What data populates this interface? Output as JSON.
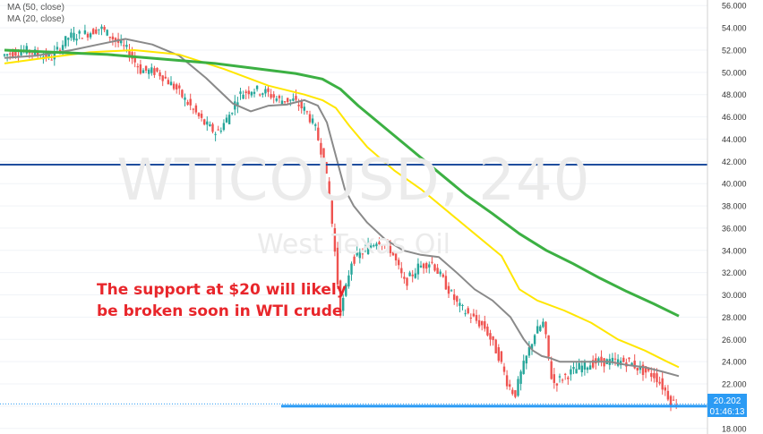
{
  "legend": {
    "ma50": "MA (50, close)",
    "ma20": "MA (20, close)"
  },
  "watermark": {
    "symbol": "WTICOUSD, 240",
    "name": "West Texas Oil"
  },
  "annotation": {
    "line1": "The support at $20 will likely",
    "line2": "be broken soon in WTI crude"
  },
  "last_price": {
    "value": "20.202",
    "countdown": "01:46:13"
  },
  "colors": {
    "up": "#26a69a",
    "down": "#ef5350",
    "ma20": "#8a8a8a",
    "ma50": "#ffe600",
    "ma_long": "#3cb043",
    "resistance": "#1f4e9e",
    "support": "#2b9bf4",
    "annotation": "#e8262b"
  },
  "chart_data": {
    "type": "line",
    "title": "WTICOUSD, 240",
    "ylim": [
      17.5,
      56.5
    ],
    "yticks": [
      18,
      20,
      22,
      24,
      26,
      28,
      30,
      32,
      34,
      36,
      38,
      40,
      42,
      44,
      46,
      48,
      50,
      52,
      54,
      56
    ],
    "ytick_labels": [
      "18.000",
      "20.000",
      "22.000",
      "24.000",
      "26.000",
      "28.000",
      "30.000",
      "32.000",
      "34.000",
      "36.000",
      "38.000",
      "40.000",
      "42.000",
      "44.000",
      "46.000",
      "48.000",
      "50.000",
      "52.000",
      "54.000",
      "56.000"
    ],
    "xlim": [
      0,
      790
    ],
    "price": {
      "x": [
        5,
        30,
        60,
        80,
        100,
        115,
        130,
        145,
        160,
        180,
        200,
        215,
        230,
        245,
        258,
        270,
        285,
        300,
        315,
        330,
        345,
        355,
        365,
        372,
        378,
        383,
        388,
        395,
        410,
        425,
        440,
        455,
        470,
        485,
        500,
        515,
        530,
        545,
        560,
        570,
        578,
        585,
        600,
        610,
        620,
        630,
        650,
        670,
        690,
        705,
        720,
        735,
        745,
        752,
        758
      ],
      "y": [
        51.5,
        52,
        51.3,
        53.2,
        53.5,
        54,
        53,
        52,
        50.2,
        50,
        48.5,
        47,
        45.5,
        44.5,
        46,
        48,
        48.5,
        48.2,
        47.5,
        47.5,
        46.5,
        45,
        42,
        38,
        33,
        28.5,
        30,
        33,
        34,
        35,
        34,
        31,
        32.5,
        33,
        31,
        29,
        28,
        27,
        24.5,
        22,
        21,
        23,
        26.5,
        27.5,
        22,
        22.5,
        23.5,
        24,
        24,
        24,
        23.2,
        22.7,
        21.5,
        20.5,
        20.2
      ]
    },
    "series": [
      {
        "name": "MA (20, close)",
        "x": [
          5,
          40,
          80,
          110,
          140,
          170,
          200,
          230,
          260,
          280,
          300,
          320,
          340,
          355,
          365,
          375,
          385,
          395,
          410,
          430,
          450,
          470,
          490,
          510,
          530,
          550,
          570,
          585,
          595,
          605,
          615,
          625,
          640,
          660,
          680,
          700,
          720,
          740,
          758
        ],
        "y": [
          51.3,
          51.5,
          52,
          52.5,
          53,
          52.5,
          51.5,
          49.5,
          47.2,
          46.5,
          47,
          47.1,
          47.5,
          47,
          45.5,
          42.5,
          39.5,
          38,
          36.5,
          35,
          34,
          33.6,
          33.4,
          32,
          30.5,
          29.5,
          28,
          26,
          25,
          24.5,
          24.3,
          24,
          24,
          24,
          24,
          23.7,
          23.5,
          23.1,
          22.7
        ]
      },
      {
        "name": "MA (50, close)",
        "x": [
          5,
          50,
          100,
          150,
          200,
          250,
          300,
          340,
          360,
          375,
          390,
          410,
          440,
          470,
          500,
          530,
          560,
          580,
          600,
          630,
          660,
          690,
          720,
          745,
          758
        ],
        "y": [
          50.8,
          51.3,
          51.8,
          52,
          51.6,
          50.3,
          48.8,
          48,
          47.5,
          46.8,
          45.2,
          43.3,
          41.2,
          39.5,
          37.5,
          35.5,
          33.5,
          30.5,
          29.5,
          28.6,
          27.5,
          26,
          25,
          24,
          23.5
        ]
      },
      {
        "name": "",
        "x": [
          5,
          60,
          120,
          180,
          240,
          290,
          330,
          360,
          380,
          400,
          430,
          460,
          490,
          520,
          550,
          580,
          610,
          640,
          670,
          700,
          730,
          758
        ],
        "y": [
          52,
          51.8,
          51.6,
          51.2,
          50.8,
          50.3,
          49.9,
          49.4,
          48.5,
          47,
          45,
          43,
          41,
          39,
          37.3,
          35.5,
          34,
          32.8,
          31.5,
          30.3,
          29.2,
          28.1
        ]
      }
    ],
    "horizontal_lines": [
      {
        "y": 41.7
      },
      {
        "y": 20
      }
    ]
  }
}
